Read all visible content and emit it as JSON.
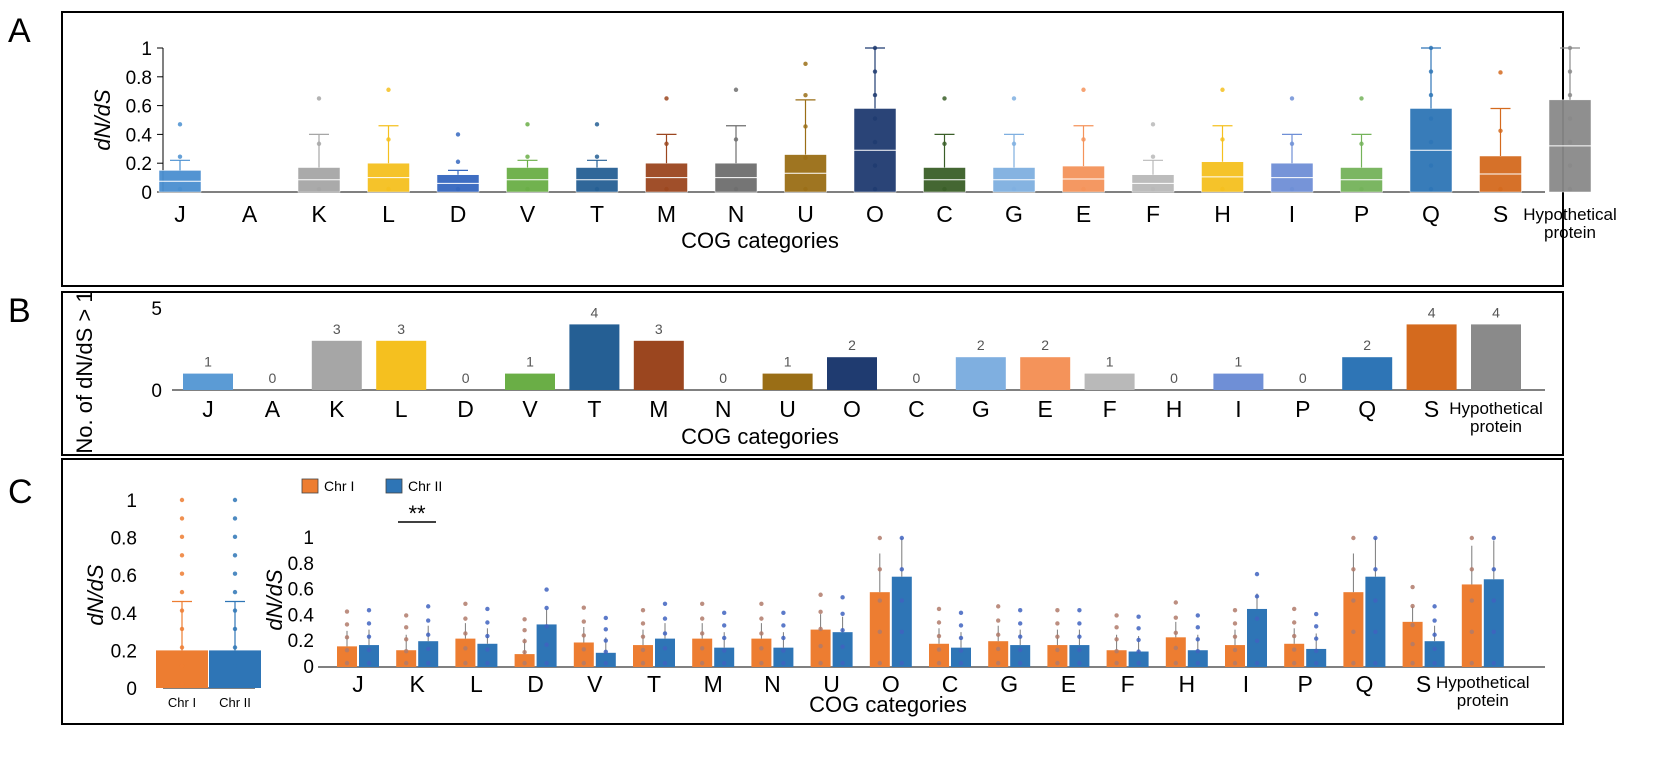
{
  "chart_data": [
    {
      "panel": "A",
      "type": "bar",
      "title": "",
      "xlabel": "COG categories",
      "ylabel": "dN/dS",
      "ylim": [
        0,
        1
      ],
      "yticks": [
        "0",
        "0.2",
        "0.4",
        "0.6",
        "0.8",
        "1"
      ],
      "categories": [
        "J",
        "A",
        "K",
        "L",
        "D",
        "V",
        "T",
        "M",
        "N",
        "U",
        "O",
        "C",
        "G",
        "E",
        "F",
        "H",
        "I",
        "P",
        "Q",
        "S",
        "Hypothetical protein"
      ],
      "values": [
        0.15,
        0,
        0.17,
        0.2,
        0.12,
        0.17,
        0.17,
        0.2,
        0.2,
        0.26,
        0.58,
        0.17,
        0.17,
        0.18,
        0.12,
        0.21,
        0.2,
        0.17,
        0.58,
        0.25,
        0.64
      ],
      "whisker_top": [
        0.22,
        null,
        0.4,
        0.46,
        0.15,
        0.22,
        0.22,
        0.4,
        0.46,
        0.64,
        1.0,
        0.4,
        0.4,
        0.46,
        0.22,
        0.46,
        0.4,
        0.4,
        1.0,
        0.58,
        1.0
      ],
      "colors": [
        "#4a8fd0",
        "#4a8fd0",
        "#a6a6a6",
        "#f5c01f",
        "#3567bf",
        "#6aae46",
        "#255f94",
        "#9b461f",
        "#6e6e6e",
        "#9a6e16",
        "#1f3b70",
        "#3a5f28",
        "#7fafe0",
        "#f4935a",
        "#b9b9b9",
        "#f5c01f",
        "#6f8fd6",
        "#74b35a",
        "#2e75b6",
        "#d46a1e",
        "#8a8a8a"
      ]
    },
    {
      "panel": "B",
      "type": "bar",
      "title": "",
      "xlabel": "COG categories",
      "ylabel": "No. of dN/dS > 1",
      "ylim": [
        0,
        5
      ],
      "yticks": [
        "0",
        "5"
      ],
      "categories": [
        "J",
        "A",
        "K",
        "L",
        "D",
        "V",
        "T",
        "M",
        "N",
        "U",
        "O",
        "C",
        "G",
        "E",
        "F",
        "H",
        "I",
        "P",
        "Q",
        "S",
        "Hypothetical protein"
      ],
      "values": [
        1,
        0,
        3,
        3,
        0,
        1,
        4,
        3,
        0,
        1,
        2,
        0,
        2,
        2,
        1,
        0,
        1,
        0,
        2,
        4,
        4
      ],
      "labels": [
        "1",
        "0",
        "3",
        "3",
        "0",
        "1",
        "4",
        "3",
        "0",
        "1",
        "2",
        "0",
        "2",
        "2",
        "1",
        "0",
        "1",
        "0",
        "2",
        "4",
        "4"
      ],
      "colors": [
        "#5b9bd5",
        "#5b9bd5",
        "#a6a6a6",
        "#f5c01f",
        "#3567bf",
        "#6aae46",
        "#255f94",
        "#9b461f",
        "#6e6e6e",
        "#9a6e16",
        "#1f3b70",
        "#3a5f28",
        "#7fafe0",
        "#f4935a",
        "#b9b9b9",
        "#f5c01f",
        "#6f8fd6",
        "#74b35a",
        "#2e75b6",
        "#d46a1e",
        "#8a8a8a"
      ]
    },
    {
      "panel": "C-left",
      "type": "bar",
      "ylabel": "dN/dS",
      "ylim": [
        0,
        1
      ],
      "yticks": [
        "0",
        "0.2",
        "0.4",
        "0.6",
        "0.8",
        "1"
      ],
      "categories": [
        "Chr I",
        "Chr II"
      ],
      "values": [
        0.2,
        0.2
      ],
      "whisker_top": [
        0.46,
        0.46
      ],
      "colors": [
        "#ed7d31",
        "#2e75b6"
      ]
    },
    {
      "panel": "C-right",
      "type": "bar",
      "xlabel": "COG categories",
      "ylabel": "dN/dS",
      "ylim": [
        0,
        1
      ],
      "yticks": [
        "0",
        "0.2",
        "0.4",
        "0.6",
        "0.8",
        "1"
      ],
      "legend": [
        "Chr I",
        "Chr II"
      ],
      "legend_position": "top-left",
      "significance": {
        "category": "K",
        "label": "**"
      },
      "categories": [
        "J",
        "K",
        "L",
        "D",
        "V",
        "T",
        "M",
        "N",
        "U",
        "O",
        "C",
        "G",
        "E",
        "F",
        "H",
        "I",
        "P",
        "Q",
        "S",
        "Hypothetical protein"
      ],
      "series": [
        {
          "name": "Chr I",
          "color": "#ed7d31",
          "values": [
            0.16,
            0.13,
            0.22,
            0.1,
            0.19,
            0.17,
            0.22,
            0.22,
            0.29,
            0.58,
            0.18,
            0.2,
            0.17,
            0.13,
            0.23,
            0.17,
            0.18,
            0.58,
            0.35,
            0.64
          ]
        },
        {
          "name": "Chr II",
          "color": "#2e75b6",
          "values": [
            0.17,
            0.2,
            0.18,
            0.33,
            0.11,
            0.22,
            0.15,
            0.15,
            0.27,
            0.7,
            0.15,
            0.17,
            0.17,
            0.12,
            0.13,
            0.45,
            0.14,
            0.7,
            0.2,
            0.68
          ]
        }
      ]
    }
  ],
  "panels": {
    "a": "A",
    "b": "B",
    "c": "C"
  },
  "hypothetical_lines": [
    "Hypothetical",
    "protein"
  ]
}
